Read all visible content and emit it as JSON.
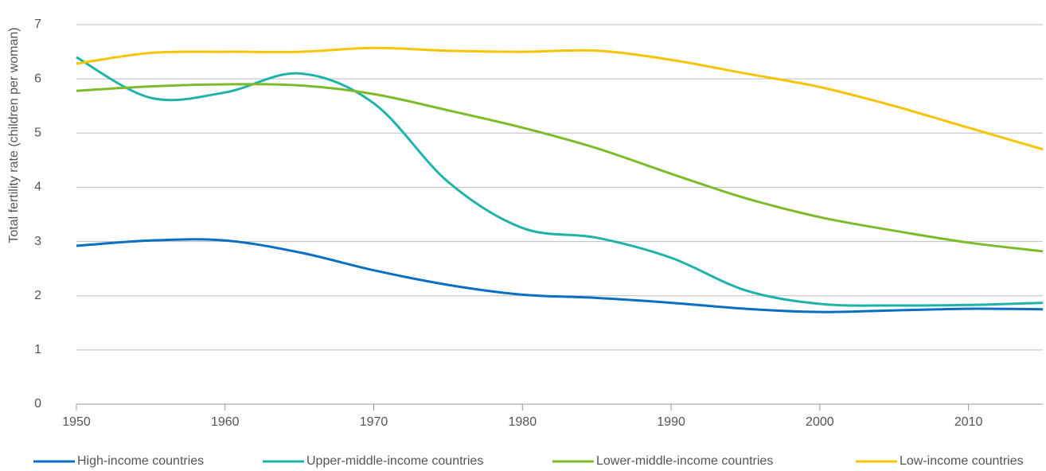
{
  "chart_data": {
    "type": "line",
    "ylabel": "Total fertility rate (children per woman)",
    "x": [
      1950,
      1955,
      1960,
      1965,
      1970,
      1975,
      1980,
      1985,
      1990,
      1995,
      2000,
      2005,
      2010,
      2015
    ],
    "series": [
      {
        "name": "High-income countries",
        "color": "#0a6fc2",
        "values": [
          2.92,
          3.02,
          3.02,
          2.8,
          2.47,
          2.2,
          2.02,
          1.96,
          1.87,
          1.76,
          1.7,
          1.73,
          1.76,
          1.75
        ]
      },
      {
        "name": "Upper-middle-income countries",
        "color": "#1db3a8",
        "values": [
          6.4,
          5.65,
          5.75,
          6.1,
          5.55,
          4.1,
          3.25,
          3.07,
          2.7,
          2.1,
          1.85,
          1.82,
          1.83,
          1.87
        ]
      },
      {
        "name": "Lower-middle-income countries",
        "color": "#7dbb2a",
        "values": [
          5.78,
          5.86,
          5.9,
          5.88,
          5.72,
          5.42,
          5.1,
          4.72,
          4.25,
          3.8,
          3.45,
          3.2,
          2.98,
          2.82
        ]
      },
      {
        "name": "Low-income countries",
        "color": "#f8c300",
        "values": [
          6.28,
          6.48,
          6.5,
          6.5,
          6.57,
          6.52,
          6.5,
          6.52,
          6.35,
          6.1,
          5.85,
          5.5,
          5.1,
          4.7
        ]
      }
    ],
    "xlim": [
      1950,
      2015
    ],
    "xticks": [
      1950,
      1960,
      1970,
      1980,
      1990,
      2000,
      2010
    ],
    "ylim": [
      0,
      7
    ],
    "yticks": [
      0,
      1,
      2,
      3,
      4,
      5,
      6,
      7
    ],
    "grid": true
  }
}
